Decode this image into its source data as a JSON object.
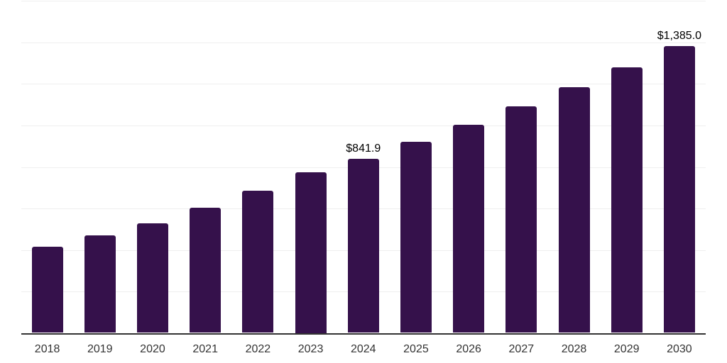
{
  "chart_data": {
    "type": "bar",
    "title": "",
    "xlabel": "",
    "ylabel": "",
    "categories": [
      "2018",
      "2019",
      "2020",
      "2021",
      "2022",
      "2023",
      "2024",
      "2025",
      "2026",
      "2027",
      "2028",
      "2029",
      "2030"
    ],
    "values": [
      417.5,
      473.0,
      532.0,
      605.0,
      686.0,
      775.0,
      841.9,
      922.0,
      1005.0,
      1092.0,
      1186.0,
      1280.0,
      1385.0
    ],
    "data_labels": {
      "2024": "$841.9",
      "2030": "$1,385.0"
    },
    "ylim": [
      0,
      1600
    ],
    "grid_interval": 200,
    "grid": "horizontal",
    "y_tick_labels": "none",
    "legend_position": "none",
    "colors": {
      "bar": "#35114B",
      "axis": "#333333",
      "gridline": "#EFEFEF",
      "data_label_text": "#000000",
      "x_tick_text": "#333333",
      "background": "#FFFFFF"
    }
  }
}
